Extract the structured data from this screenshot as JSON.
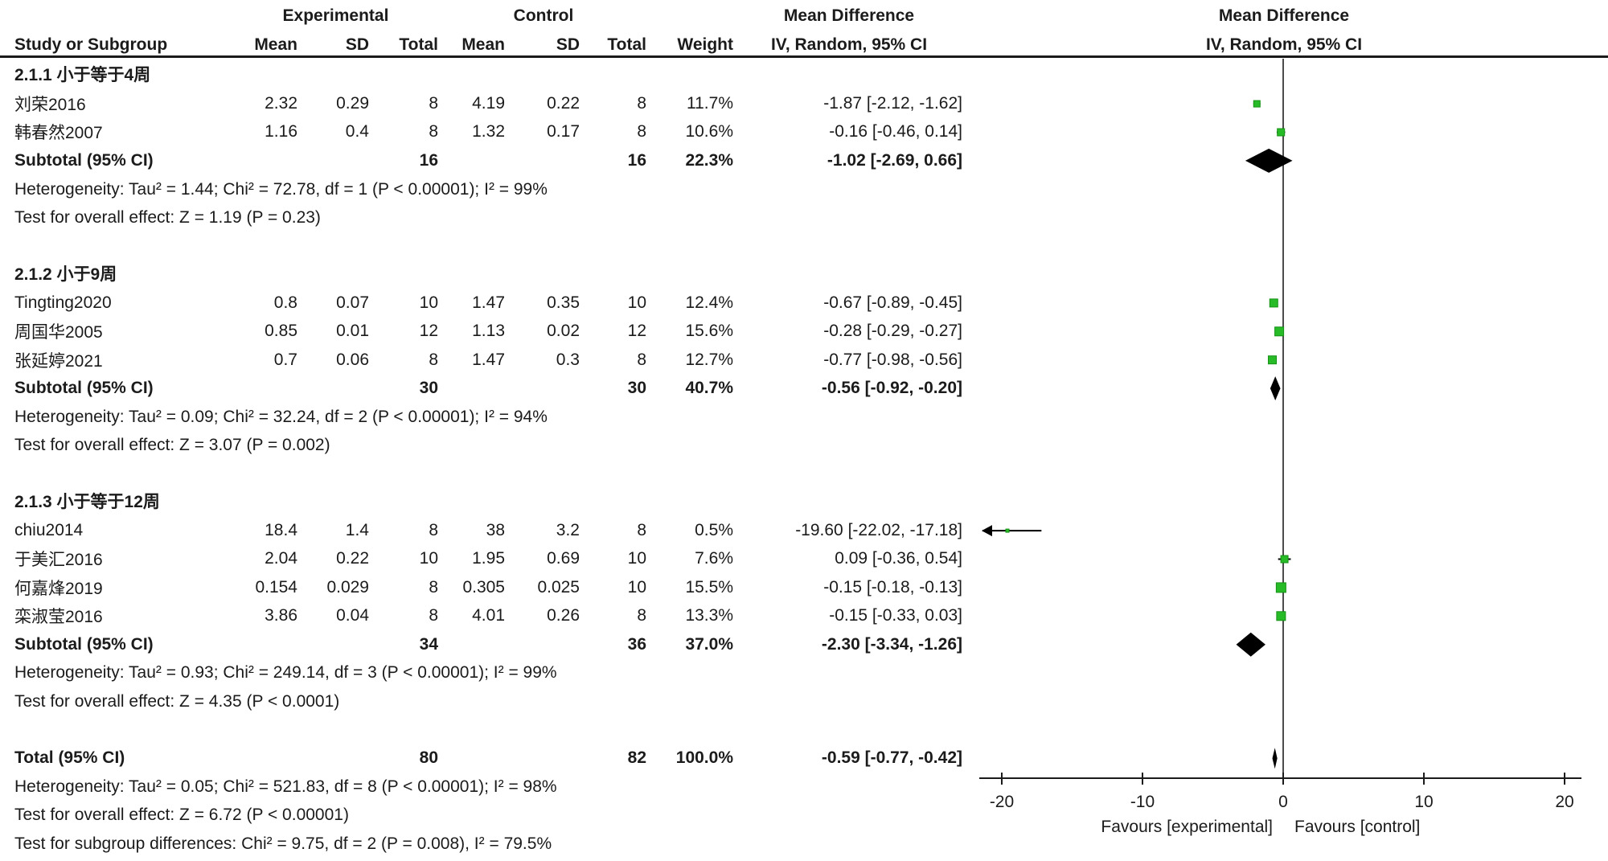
{
  "headers": {
    "row1": {
      "experimental": "Experimental",
      "control": "Control",
      "md_text_col": "Mean Difference",
      "md_plot_col": "Mean Difference"
    },
    "row2": {
      "study": "Study or Subgroup",
      "mean_exp": "Mean",
      "sd_exp": "SD",
      "total_exp": "Total",
      "mean_ctl": "Mean",
      "sd_ctl": "SD",
      "total_ctl": "Total",
      "weight": "Weight",
      "iv_text_col": "IV, Random, 95% CI",
      "iv_plot_col": "IV, Random, 95% CI"
    }
  },
  "colors": {
    "square_green": "#28bb28",
    "square_green_border": "#149114",
    "diamond_black": "#000000",
    "zero_line_gray": "#4c4c4c",
    "text_black": "#1b1b1b"
  },
  "rows": [
    {
      "type": "subgroup",
      "label": "2.1.1 小于等于4周"
    },
    {
      "type": "study",
      "label": "刘荣2016",
      "mean1": "2.32",
      "sd1": "0.29",
      "total1": "8",
      "mean2": "4.19",
      "sd2": "0.22",
      "total2": "8",
      "weight": "11.7%",
      "ci": "-1.87 [-2.12, -1.62]"
    },
    {
      "type": "study",
      "label": "韩春然2007",
      "mean1": "1.16",
      "sd1": "0.4",
      "total1": "8",
      "mean2": "1.32",
      "sd2": "0.17",
      "total2": "8",
      "weight": "10.6%",
      "ci": "-0.16 [-0.46, 0.14]"
    },
    {
      "type": "subtotal",
      "label": "Subtotal (95% CI)",
      "mean1": "",
      "sd1": "",
      "total1": "16",
      "mean2": "",
      "sd2": "",
      "total2": "16",
      "weight": "22.3%",
      "ci": "-1.02 [-2.69, 0.66]"
    },
    {
      "type": "note",
      "label": "Heterogeneity: Tau² = 1.44; Chi² = 72.78, df = 1 (P < 0.00001); I² = 99%"
    },
    {
      "type": "note",
      "label": "Test for overall effect: Z = 1.19 (P = 0.23)"
    },
    {
      "type": "blank",
      "label": ""
    },
    {
      "type": "subgroup",
      "label": "2.1.2 小于9周"
    },
    {
      "type": "study",
      "label": "Tingting2020",
      "mean1": "0.8",
      "sd1": "0.07",
      "total1": "10",
      "mean2": "1.47",
      "sd2": "0.35",
      "total2": "10",
      "weight": "12.4%",
      "ci": "-0.67 [-0.89, -0.45]"
    },
    {
      "type": "study",
      "label": "周国华2005",
      "mean1": "0.85",
      "sd1": "0.01",
      "total1": "12",
      "mean2": "1.13",
      "sd2": "0.02",
      "total2": "12",
      "weight": "15.6%",
      "ci": "-0.28 [-0.29, -0.27]"
    },
    {
      "type": "study",
      "label": "张延婷2021",
      "mean1": "0.7",
      "sd1": "0.06",
      "total1": "8",
      "mean2": "1.47",
      "sd2": "0.3",
      "total2": "8",
      "weight": "12.7%",
      "ci": "-0.77 [-0.98, -0.56]"
    },
    {
      "type": "subtotal",
      "label": "Subtotal (95% CI)",
      "mean1": "",
      "sd1": "",
      "total1": "30",
      "mean2": "",
      "sd2": "",
      "total2": "30",
      "weight": "40.7%",
      "ci": "-0.56 [-0.92, -0.20]"
    },
    {
      "type": "note",
      "label": "Heterogeneity: Tau² = 0.09; Chi² = 32.24, df = 2 (P < 0.00001); I² = 94%"
    },
    {
      "type": "note",
      "label": "Test for overall effect: Z = 3.07 (P = 0.002)"
    },
    {
      "type": "blank",
      "label": ""
    },
    {
      "type": "subgroup",
      "label": "2.1.3 小于等于12周"
    },
    {
      "type": "study",
      "label": "chiu2014",
      "mean1": "18.4",
      "sd1": "1.4",
      "total1": "8",
      "mean2": "38",
      "sd2": "3.2",
      "total2": "8",
      "weight": "0.5%",
      "ci": "-19.60 [-22.02, -17.18]"
    },
    {
      "type": "study",
      "label": "于美汇2016",
      "mean1": "2.04",
      "sd1": "0.22",
      "total1": "10",
      "mean2": "1.95",
      "sd2": "0.69",
      "total2": "10",
      "weight": "7.6%",
      "ci": "0.09 [-0.36, 0.54]"
    },
    {
      "type": "study",
      "label": "何嘉烽2019",
      "mean1": "0.154",
      "sd1": "0.029",
      "total1": "8",
      "mean2": "0.305",
      "sd2": "0.025",
      "total2": "10",
      "weight": "15.5%",
      "ci": "-0.15 [-0.18, -0.13]"
    },
    {
      "type": "study",
      "label": "栾淑莹2016",
      "mean1": "3.86",
      "sd1": "0.04",
      "total1": "8",
      "mean2": "4.01",
      "sd2": "0.26",
      "total2": "8",
      "weight": "13.3%",
      "ci": "-0.15 [-0.33, 0.03]"
    },
    {
      "type": "subtotal",
      "label": "Subtotal (95% CI)",
      "mean1": "",
      "sd1": "",
      "total1": "34",
      "mean2": "",
      "sd2": "",
      "total2": "36",
      "weight": "37.0%",
      "ci": "-2.30 [-3.34, -1.26]"
    },
    {
      "type": "note",
      "label": "Heterogeneity: Tau² = 0.93; Chi² = 249.14, df = 3 (P < 0.00001); I² = 99%"
    },
    {
      "type": "note",
      "label": "Test for overall effect: Z = 4.35 (P < 0.0001)"
    },
    {
      "type": "blank",
      "label": ""
    },
    {
      "type": "total",
      "label": "Total (95% CI)",
      "mean1": "",
      "sd1": "",
      "total1": "80",
      "mean2": "",
      "sd2": "",
      "total2": "82",
      "weight": "100.0%",
      "ci": "-0.59 [-0.77, -0.42]"
    },
    {
      "type": "note",
      "label": "Heterogeneity: Tau² = 0.05; Chi² = 521.83, df = 8 (P < 0.00001); I² = 98%"
    },
    {
      "type": "note",
      "label": "Test for overall effect: Z = 6.72 (P < 0.00001)"
    },
    {
      "type": "note",
      "label": "Test for subgroup differences: Chi² = 9.75, df = 2 (P = 0.008), I² = 79.5%"
    }
  ],
  "chart_data": {
    "type": "forest",
    "effect_measure": "Mean Difference",
    "model": "IV, Random, 95% CI",
    "xlim": [
      -20,
      20
    ],
    "ticks": [
      -20,
      -10,
      0,
      10,
      20
    ],
    "favours_left": "Favours [experimental]",
    "favours_right": "Favours [control]",
    "studies": [
      {
        "label": "刘荣2016",
        "row": 1,
        "md": -1.87,
        "low": -2.12,
        "high": -1.62,
        "weight": 11.7,
        "size": 8
      },
      {
        "label": "韩春然2007",
        "row": 2,
        "md": -0.16,
        "low": -0.46,
        "high": 0.14,
        "weight": 10.6,
        "size": 9
      },
      {
        "label": "Tingting2020",
        "row": 8,
        "md": -0.67,
        "low": -0.89,
        "high": -0.45,
        "weight": 12.4,
        "size": 10
      },
      {
        "label": "周国华2005",
        "row": 9,
        "md": -0.28,
        "low": -0.29,
        "high": -0.27,
        "weight": 15.6,
        "size": 11
      },
      {
        "label": "张延婷2021",
        "row": 10,
        "md": -0.77,
        "low": -0.98,
        "high": -0.56,
        "weight": 12.7,
        "size": 10
      },
      {
        "label": "chiu2014",
        "row": 16,
        "md": -19.6,
        "low": -22.02,
        "high": -17.18,
        "weight": 0.5,
        "size": 4
      },
      {
        "label": "于美汇2016",
        "row": 17,
        "md": 0.09,
        "low": -0.36,
        "high": 0.54,
        "weight": 7.6,
        "size": 9
      },
      {
        "label": "何嘉烽2019",
        "row": 18,
        "md": -0.15,
        "low": -0.18,
        "high": -0.13,
        "weight": 15.5,
        "size": 12
      },
      {
        "label": "栾淑莹2016",
        "row": 19,
        "md": -0.15,
        "low": -0.33,
        "high": 0.03,
        "weight": 13.3,
        "size": 11
      }
    ],
    "diamonds": [
      {
        "label": "Subtotal 2.1.1",
        "row": 3,
        "md": -1.02,
        "low": -2.69,
        "high": 0.66
      },
      {
        "label": "Subtotal 2.1.2",
        "row": 11,
        "md": -0.56,
        "low": -0.92,
        "high": -0.2
      },
      {
        "label": "Subtotal 2.1.3",
        "row": 20,
        "md": -2.3,
        "low": -3.34,
        "high": -1.26
      },
      {
        "label": "Total",
        "row": 24,
        "md": -0.59,
        "low": -0.77,
        "high": -0.42
      }
    ]
  }
}
